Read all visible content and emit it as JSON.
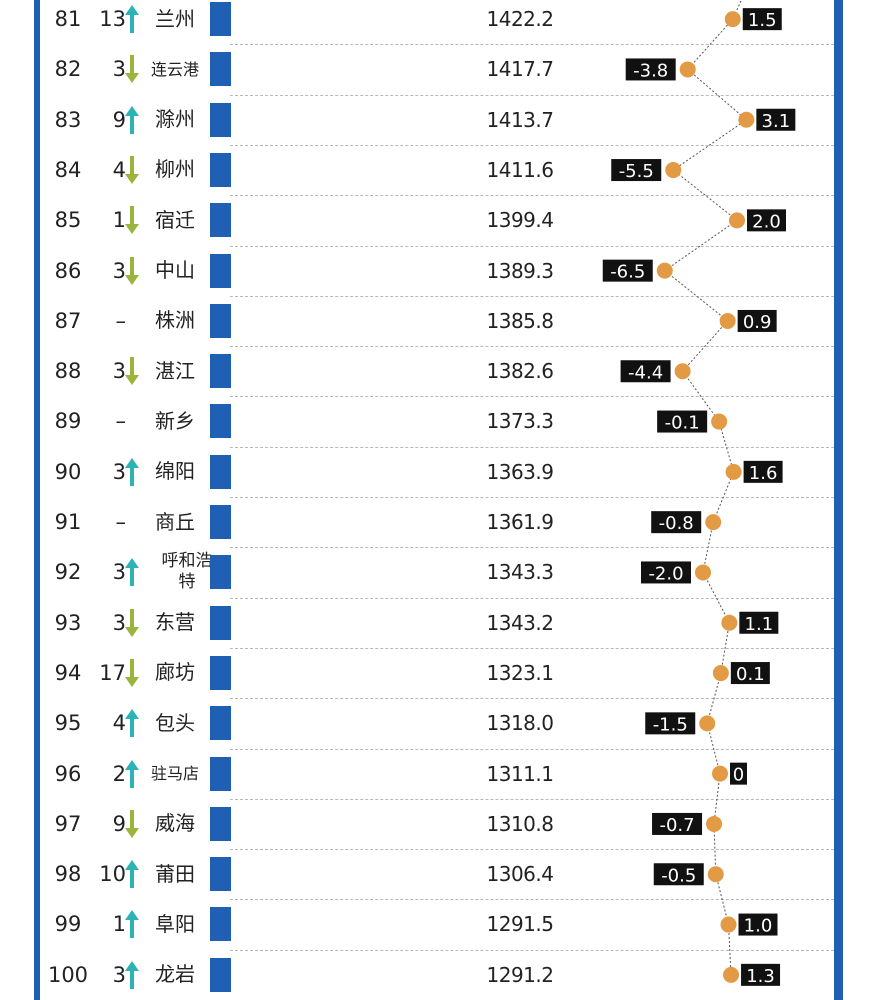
{
  "chart_data": {
    "type": "table",
    "columns": [
      "rank",
      "rank_change",
      "direction",
      "city",
      "gdp",
      "growth"
    ],
    "rows": [
      {
        "rank": "81",
        "change": "13",
        "dir": "up",
        "city": "兰州",
        "gdp": "1422.2",
        "growth": "1.5"
      },
      {
        "rank": "82",
        "change": "3",
        "dir": "down",
        "city": "连云港",
        "gdp": "1417.7",
        "growth": "-3.8"
      },
      {
        "rank": "83",
        "change": "9",
        "dir": "up",
        "city": "滁州",
        "gdp": "1413.7",
        "growth": "3.1"
      },
      {
        "rank": "84",
        "change": "4",
        "dir": "down",
        "city": "柳州",
        "gdp": "1411.6",
        "growth": "-5.5"
      },
      {
        "rank": "85",
        "change": "1",
        "dir": "down",
        "city": "宿迁",
        "gdp": "1399.4",
        "growth": "2.0"
      },
      {
        "rank": "86",
        "change": "3",
        "dir": "down",
        "city": "中山",
        "gdp": "1389.3",
        "growth": "-6.5"
      },
      {
        "rank": "87",
        "change": "–",
        "dir": "none",
        "city": "株洲",
        "gdp": "1385.8",
        "growth": "0.9"
      },
      {
        "rank": "88",
        "change": "3",
        "dir": "down",
        "city": "湛江",
        "gdp": "1382.6",
        "growth": "-4.4"
      },
      {
        "rank": "89",
        "change": "–",
        "dir": "none",
        "city": "新乡",
        "gdp": "1373.3",
        "growth": "-0.1"
      },
      {
        "rank": "90",
        "change": "3",
        "dir": "up",
        "city": "绵阳",
        "gdp": "1363.9",
        "growth": "1.6"
      },
      {
        "rank": "91",
        "change": "–",
        "dir": "none",
        "city": "商丘",
        "gdp": "1361.9",
        "growth": "-0.8"
      },
      {
        "rank": "92",
        "change": "3",
        "dir": "up",
        "city": "呼和浩特",
        "gdp": "1343.3",
        "growth": "-2.0"
      },
      {
        "rank": "93",
        "change": "3",
        "dir": "down",
        "city": "东营",
        "gdp": "1343.2",
        "growth": "1.1"
      },
      {
        "rank": "94",
        "change": "17",
        "dir": "down",
        "city": "廊坊",
        "gdp": "1323.1",
        "growth": "0.1"
      },
      {
        "rank": "95",
        "change": "4",
        "dir": "up",
        "city": "包头",
        "gdp": "1318.0",
        "growth": "-1.5"
      },
      {
        "rank": "96",
        "change": "2",
        "dir": "up",
        "city": "驻马店",
        "gdp": "1311.1",
        "growth": "0"
      },
      {
        "rank": "97",
        "change": "9",
        "dir": "down",
        "city": "威海",
        "gdp": "1310.8",
        "growth": "-0.7"
      },
      {
        "rank": "98",
        "change": "10",
        "dir": "up",
        "city": "莆田",
        "gdp": "1306.4",
        "growth": "-0.5"
      },
      {
        "rank": "99",
        "change": "1",
        "dir": "up",
        "city": "阜阳",
        "gdp": "1291.5",
        "growth": "1.0"
      },
      {
        "rank": "100",
        "change": "3",
        "dir": "up",
        "city": "龙岩",
        "gdp": "1291.2",
        "growth": "1.3"
      }
    ],
    "colors": {
      "bar": "#1f5fb4",
      "up": "#2bb3b6",
      "down": "#9ab43c",
      "dot": "#e29a45",
      "label_bg": "#111111",
      "label_text": "#ffffff"
    }
  }
}
